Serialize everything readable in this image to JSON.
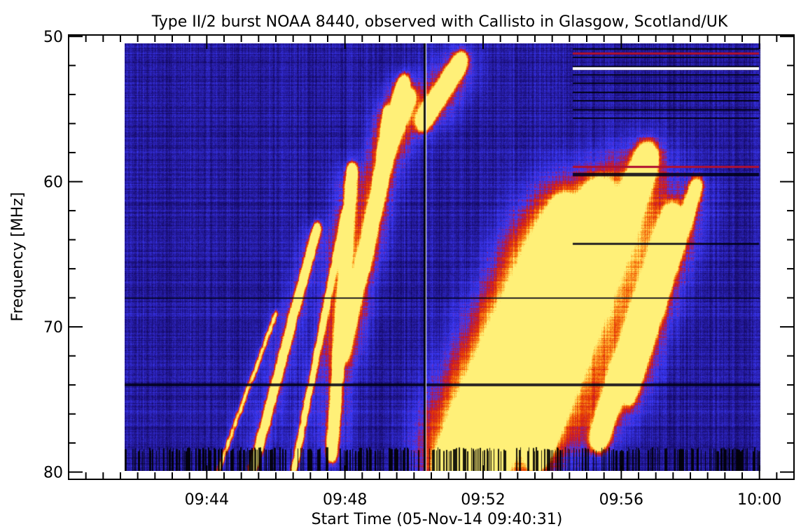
{
  "chart_data": {
    "type": "heatmap",
    "title": "Type II/2 burst NOAA 8440, observed with Callisto in Glasgow, Scotland/UK",
    "xlabel": "Start Time (05-Nov-14 09:40:31)",
    "ylabel": "Frequency [MHz]",
    "x_unit": "minutes after 09:40",
    "xlim": [
      0,
      21
    ],
    "ylim": [
      80.5,
      49.9
    ],
    "data_x_range": [
      1.52,
      20
    ],
    "x_ticks": [
      {
        "value": 4,
        "label": "09:44"
      },
      {
        "value": 8,
        "label": "09:48"
      },
      {
        "value": 12,
        "label": "09:52"
      },
      {
        "value": 16,
        "label": "09:56"
      },
      {
        "value": 20,
        "label": "10:00"
      }
    ],
    "y_ticks": [
      {
        "value": 50,
        "label": "50"
      },
      {
        "value": 60,
        "label": "60"
      },
      {
        "value": 70,
        "label": "70"
      },
      {
        "value": 80,
        "label": "80"
      }
    ],
    "colormap": {
      "background": "#2a1fa8",
      "mid": "#3b3bff",
      "high": "#e02000",
      "peak": "#ffd040",
      "saturated": "#ffffff",
      "missing": "#000000"
    },
    "features": [
      {
        "kind": "burst-lane",
        "from": [
          5.3,
          80
        ],
        "to": [
          7.2,
          63
        ],
        "width": 5,
        "intensity": 0.75
      },
      {
        "kind": "burst-lane",
        "from": [
          4.3,
          80
        ],
        "to": [
          6.0,
          69
        ],
        "width": 3,
        "intensity": 0.55
      },
      {
        "kind": "burst-lane",
        "from": [
          6.5,
          80
        ],
        "to": [
          8.0,
          62
        ],
        "width": 4,
        "intensity": 0.6
      },
      {
        "kind": "burst-lane",
        "from": [
          7.6,
          79
        ],
        "to": [
          8.2,
          59
        ],
        "width": 6,
        "intensity": 0.85
      },
      {
        "kind": "burst-lane",
        "from": [
          7.9,
          72
        ],
        "to": [
          9.7,
          53
        ],
        "width": 7,
        "intensity": 0.85
      },
      {
        "kind": "burst-lane",
        "from": [
          8.6,
          66
        ],
        "to": [
          9.2,
          55
        ],
        "width": 4,
        "intensity": 0.8
      },
      {
        "kind": "burst-lane",
        "from": [
          9.2,
          58
        ],
        "to": [
          9.9,
          54
        ],
        "width": 6,
        "intensity": 0.9
      },
      {
        "kind": "burst-lane",
        "from": [
          10.2,
          56
        ],
        "to": [
          11.4,
          51.5
        ],
        "width": 8,
        "intensity": 0.85
      },
      {
        "kind": "burst-lane",
        "from": [
          10.9,
          80
        ],
        "to": [
          14.4,
          62
        ],
        "width": 14,
        "intensity": 1.0
      },
      {
        "kind": "burst-lane",
        "from": [
          12.0,
          80
        ],
        "to": [
          15.4,
          61
        ],
        "width": 16,
        "intensity": 0.95
      },
      {
        "kind": "burst-lane",
        "from": [
          13.5,
          79
        ],
        "to": [
          16.8,
          58
        ],
        "width": 12,
        "intensity": 0.8
      },
      {
        "kind": "burst-lane",
        "from": [
          15.3,
          78
        ],
        "to": [
          17.5,
          62
        ],
        "width": 10,
        "intensity": 0.65
      },
      {
        "kind": "burst-lane",
        "from": [
          16.2,
          75
        ],
        "to": [
          18.2,
          60
        ],
        "width": 8,
        "intensity": 0.45
      },
      {
        "kind": "blob",
        "x": 11.9,
        "y": 77.0,
        "rx": 14,
        "ry": 22,
        "intensity": 1.2
      },
      {
        "kind": "blob",
        "x": 12.6,
        "y": 71.0,
        "rx": 18,
        "ry": 26,
        "intensity": 1.05
      },
      {
        "kind": "blob",
        "x": 13.4,
        "y": 67.0,
        "rx": 16,
        "ry": 24,
        "intensity": 1.0
      },
      {
        "kind": "blob",
        "x": 14.2,
        "y": 65.5,
        "rx": 14,
        "ry": 20,
        "intensity": 0.95
      },
      {
        "kind": "blob",
        "x": 15.1,
        "y": 67.0,
        "rx": 12,
        "ry": 18,
        "intensity": 0.85
      },
      {
        "kind": "blob",
        "x": 12.3,
        "y": 78.5,
        "rx": 10,
        "ry": 10,
        "intensity": 1.35
      },
      {
        "kind": "hline-dark",
        "y": 52.2,
        "x_from": 14.6,
        "x_to": 20,
        "thickness": 3
      },
      {
        "kind": "hline-dark",
        "y": 59.5,
        "x_from": 14.6,
        "x_to": 20,
        "thickness": 5
      },
      {
        "kind": "hline-dark",
        "y": 64.3,
        "x_from": 14.6,
        "x_to": 20,
        "thickness": 3
      },
      {
        "kind": "hline-dark",
        "y": 74.0,
        "x_from": 1.52,
        "x_to": 20,
        "thickness": 4
      },
      {
        "kind": "hline-dark",
        "y": 68.0,
        "x_from": 1.52,
        "x_to": 20,
        "thickness": 2
      },
      {
        "kind": "hline-white",
        "y": 52.2,
        "x_from": 14.6,
        "x_to": 20,
        "thickness": 4
      },
      {
        "kind": "hline-red",
        "y": 51.2,
        "x_from": 14.6,
        "x_to": 20,
        "thickness": 3
      },
      {
        "kind": "hline-red",
        "y": 59.0,
        "x_from": 14.6,
        "x_to": 20,
        "thickness": 3
      },
      {
        "kind": "vline-dark",
        "x": 10.3,
        "y_from": 50,
        "y_to": 80,
        "thickness": 3
      }
    ]
  }
}
